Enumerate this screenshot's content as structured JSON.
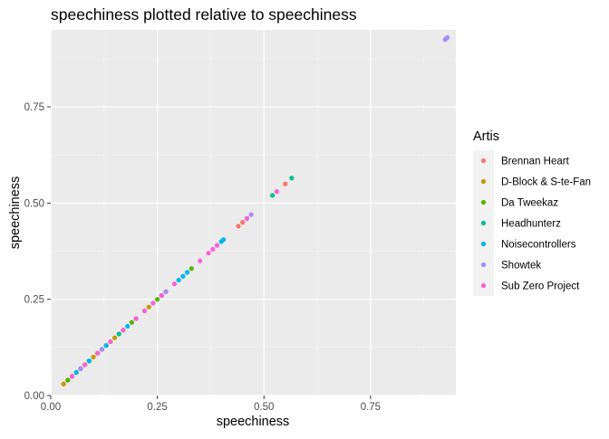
{
  "chart_data": {
    "type": "scatter",
    "title": "speechiness plotted relative to speechiness",
    "xlabel": "speechiness",
    "ylabel": "speechiness",
    "xlim": [
      0.0,
      0.95
    ],
    "ylim": [
      0.0,
      0.95
    ],
    "x_ticks": [
      0.0,
      0.25,
      0.5,
      0.75
    ],
    "y_ticks": [
      0.0,
      0.25,
      0.5,
      0.75
    ],
    "x_tick_labels": [
      "0.00",
      "0.25",
      "0.50",
      "0.75"
    ],
    "y_tick_labels": [
      "0.00",
      "0.25",
      "0.50",
      "0.75"
    ],
    "grid": true,
    "background": "#ebebeb",
    "legend_title": "Artis",
    "legend_position": "right",
    "series": [
      {
        "name": "Brennan Heart",
        "color": "#F8766D",
        "x": [
          0.03,
          0.05,
          0.07,
          0.1,
          0.13,
          0.16,
          0.2,
          0.44,
          0.45,
          0.55
        ],
        "y": [
          0.03,
          0.05,
          0.07,
          0.1,
          0.13,
          0.16,
          0.2,
          0.44,
          0.45,
          0.55
        ]
      },
      {
        "name": "D-Block & S-te-Fan",
        "color": "#C49A00",
        "x": [
          0.03,
          0.04,
          0.05,
          0.06,
          0.07,
          0.08,
          0.09,
          0.1,
          0.11,
          0.12,
          0.13,
          0.15,
          0.17,
          0.2,
          0.23,
          0.26
        ],
        "y": [
          0.03,
          0.04,
          0.05,
          0.06,
          0.07,
          0.08,
          0.09,
          0.1,
          0.11,
          0.12,
          0.13,
          0.15,
          0.17,
          0.2,
          0.23,
          0.26
        ]
      },
      {
        "name": "Da Tweekaz",
        "color": "#53B400",
        "x": [
          0.04,
          0.06,
          0.08,
          0.11,
          0.14,
          0.17,
          0.19,
          0.22,
          0.25,
          0.27,
          0.32,
          0.33
        ],
        "y": [
          0.04,
          0.06,
          0.08,
          0.11,
          0.14,
          0.17,
          0.19,
          0.22,
          0.25,
          0.27,
          0.32,
          0.33
        ]
      },
      {
        "name": "Headhunterz",
        "color": "#00C094",
        "x": [
          0.05,
          0.09,
          0.12,
          0.16,
          0.26,
          0.31,
          0.52,
          0.565
        ],
        "y": [
          0.05,
          0.09,
          0.12,
          0.16,
          0.26,
          0.31,
          0.52,
          0.565
        ]
      },
      {
        "name": "Noisecontrollers",
        "color": "#00B6EB",
        "x": [
          0.06,
          0.09,
          0.13,
          0.18,
          0.24,
          0.3,
          0.31,
          0.32,
          0.4,
          0.405
        ],
        "y": [
          0.06,
          0.09,
          0.13,
          0.18,
          0.24,
          0.3,
          0.31,
          0.32,
          0.4,
          0.405
        ]
      },
      {
        "name": "Showtek",
        "color": "#A58AFF",
        "x": [
          0.07,
          0.12,
          0.27,
          0.29,
          0.46,
          0.47,
          0.925,
          0.93
        ],
        "y": [
          0.07,
          0.12,
          0.27,
          0.29,
          0.46,
          0.47,
          0.925,
          0.93
        ]
      },
      {
        "name": "Sub Zero Project",
        "color": "#FB61D7",
        "x": [
          0.05,
          0.08,
          0.11,
          0.14,
          0.17,
          0.2,
          0.22,
          0.24,
          0.26,
          0.29,
          0.35,
          0.37,
          0.38,
          0.39,
          0.46,
          0.53
        ],
        "y": [
          0.05,
          0.08,
          0.11,
          0.14,
          0.17,
          0.2,
          0.22,
          0.24,
          0.26,
          0.29,
          0.35,
          0.37,
          0.38,
          0.39,
          0.46,
          0.53
        ]
      }
    ]
  }
}
